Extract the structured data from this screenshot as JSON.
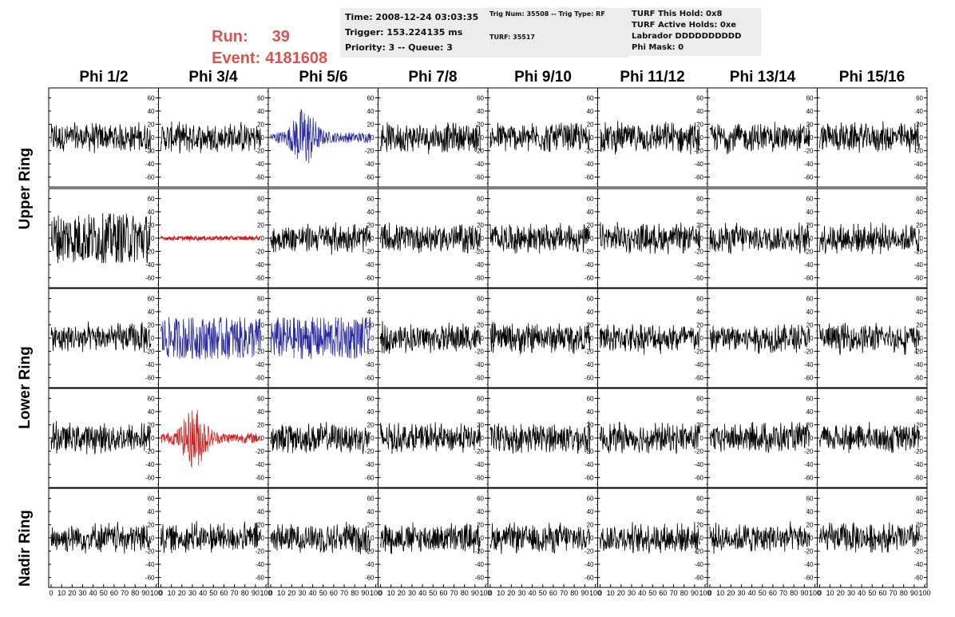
{
  "run": {
    "run_label": "Run:",
    "run_value": "39",
    "event_label": "Event:",
    "event_value": "4181608"
  },
  "info": {
    "time": "Time: 2008-12-24 03:03:35",
    "trigger": "Trigger: 153.224135 ms",
    "priority": "Priority: 3 -- Queue: 3",
    "trig_num": "Trig Num: 35508 -- Trig Type: RF",
    "turf": "TURF: 35517",
    "turf_this_hold": "TURF This Hold: 0x8",
    "turf_active_holds": "TURF Active Holds: 0xe",
    "labrador": "Labrador DDDDDDDDDD",
    "phi_mask": "Phi Mask: 0"
  },
  "columns": [
    "Phi 1/2",
    "Phi 3/4",
    "Phi 5/6",
    "Phi 7/8",
    "Phi 9/10",
    "Phi 11/12",
    "Phi 13/14",
    "Phi 15/16"
  ],
  "rings": [
    "Upper Ring",
    "Lower Ring",
    "Nadir Ring"
  ],
  "colors": {
    "normal": "#000000",
    "triggered_h": "#2b2b9e",
    "triggered_v": "#cc2222",
    "run_text": "#d9534f",
    "info_bg": "#ececec"
  },
  "chart_data": {
    "type": "line",
    "x_range": [
      0,
      100
    ],
    "y_range": [
      -75,
      75
    ],
    "x_ticks": [
      "0",
      "10",
      "20",
      "30",
      "40",
      "50",
      "60",
      "70",
      "80",
      "90",
      "100"
    ],
    "y_ticks": [
      "-60",
      "-40",
      "-20",
      "0",
      "20",
      "40",
      "60"
    ],
    "grid": false,
    "waveform_rows": 5,
    "waveform_cols": 8,
    "highlighted_panels": [
      {
        "row": 0,
        "col": 2,
        "color": "triggered_h"
      },
      {
        "row": 1,
        "col": 1,
        "color": "triggered_v"
      },
      {
        "row": 2,
        "col": 1,
        "color": "triggered_h"
      },
      {
        "row": 2,
        "col": 2,
        "color": "triggered_h"
      },
      {
        "row": 3,
        "col": 1,
        "color": "triggered_v"
      }
    ]
  }
}
